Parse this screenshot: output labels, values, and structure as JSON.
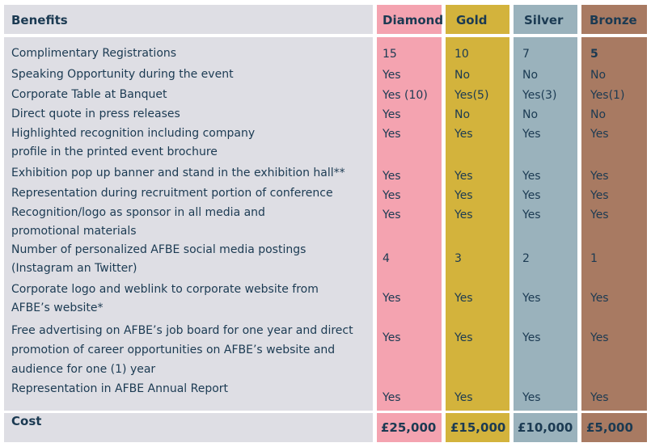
{
  "header": {
    "benefits": "Benefits",
    "diamond": "Diamond",
    "gold": "Gold",
    "silver": "Silver",
    "bronze": "Bronze"
  },
  "rows": [
    {
      "label": [
        "Complimentary Registrations"
      ],
      "diamond": "15",
      "gold": "10",
      "silver": "7",
      "bronze": "5"
    },
    {
      "label": [
        "Speaking Opportunity during the event"
      ],
      "diamond": "Yes",
      "gold": "No",
      "silver": "No",
      "bronze": "No"
    },
    {
      "label": [
        "Corporate Table at Banquet"
      ],
      "diamond": "Yes (10)",
      "gold": "Yes(5)",
      "silver": "Yes(3)",
      "bronze": "Yes(1)"
    },
    {
      "label": [
        "Direct quote in press releases"
      ],
      "diamond": "Yes",
      "gold": "No",
      "silver": "No",
      "bronze": "No"
    },
    {
      "label": [
        "Highlighted recognition including company",
        "profile in the printed event brochure"
      ],
      "diamond": "Yes",
      "gold": "Yes",
      "silver": "Yes",
      "bronze": "Yes"
    },
    {
      "label": [
        "Exhibition pop up banner and stand in the exhibition hall**"
      ],
      "diamond": "Yes",
      "gold": "Yes",
      "silver": "Yes",
      "bronze": "Yes"
    },
    {
      "label": [
        "Representation during recruitment portion of conference"
      ],
      "diamond": "Yes",
      "gold": "Yes",
      "silver": "Yes",
      "bronze": "Yes"
    },
    {
      "label": [
        "Recognition/logo as sponsor in all media and",
        "promotional materials"
      ],
      "diamond": "Yes",
      "gold": "Yes",
      "silver": "Yes",
      "bronze": "Yes"
    },
    {
      "label": [
        "Number of personalized AFBE social media postings",
        "(Instagram an Twitter)"
      ],
      "diamond": "4",
      "gold": "3",
      "silver": "2",
      "bronze": "1"
    },
    {
      "label": [
        "Corporate logo and weblink to corporate website from",
        "AFBE’s website*"
      ],
      "diamond": "Yes",
      "gold": "Yes",
      "silver": "Yes",
      "bronze": "Yes"
    },
    {
      "label": [
        "Free advertising on AFBE’s job board for one year and direct",
        "promotion of career opportunities on AFBE’s website and",
        "audience for one (1) year"
      ],
      "diamond": "Yes",
      "gold": "Yes",
      "silver": "Yes",
      "bronze": "Yes"
    },
    {
      "label": [
        "Representation in AFBE Annual Report"
      ],
      "diamond": "Yes",
      "gold": "Yes",
      "silver": "Yes",
      "bronze": "Yes"
    }
  ],
  "cost": {
    "label": "Cost",
    "diamond": "£25,000",
    "gold": "£15,000",
    "silver": "£10,000",
    "bronze": "£5,000"
  },
  "colors": {
    "benefits": "#dedee4",
    "diamond": "#f4a3b0",
    "gold": "#d3b33c",
    "silver": "#9ab2bc",
    "bronze": "#a87a62",
    "text": "#1b3a52"
  }
}
